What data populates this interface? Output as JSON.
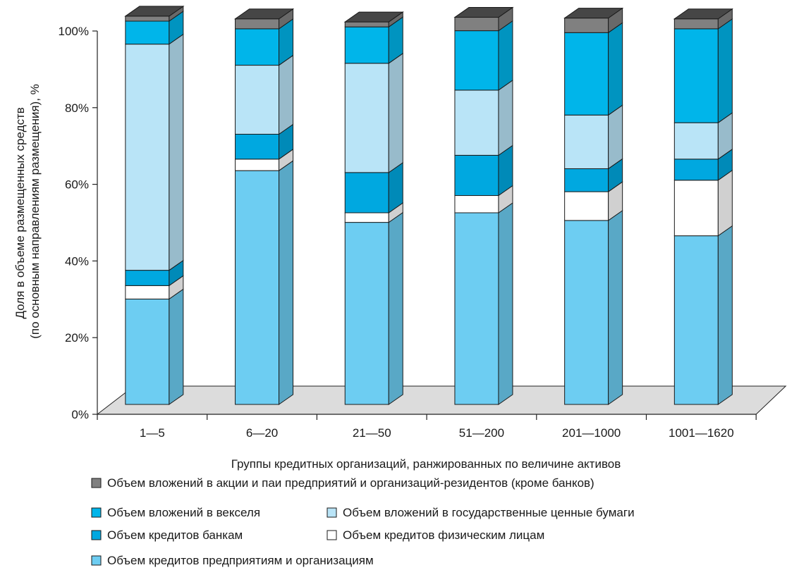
{
  "chart_data": {
    "type": "bar",
    "stacked": true,
    "three_d": true,
    "xlabel": "Группы кредитных организаций, ранжированных по величине активов",
    "ylabel": "Доля в объеме размещенных средств (по основным направлениям размещения), %",
    "ylabel_lines": [
      "Доля в объеме размещенных средств",
      "(по основным направлениям размещения), %"
    ],
    "ylim": [
      0,
      100
    ],
    "yticks": [
      "0%",
      "20%",
      "40%",
      "60%",
      "80%",
      "100%"
    ],
    "categories": [
      "1—5",
      "6—20",
      "21—50",
      "51—200",
      "201—1000",
      "1001—1620"
    ],
    "series": [
      {
        "name": "Объем кредитов предприятиям и организациям",
        "color": "#6dcdf2",
        "values": [
          27.5,
          61,
          47.5,
          50,
          48,
          44
        ]
      },
      {
        "name": "Объем кредитов физическим лицам",
        "color": "#ffffff",
        "values": [
          3.5,
          3,
          2.5,
          4.5,
          7.5,
          14.5
        ]
      },
      {
        "name": "Объем кредитов банкам",
        "color": "#00a8e0",
        "values": [
          4,
          6.5,
          10.5,
          10.5,
          6,
          5.5
        ]
      },
      {
        "name": "Объем вложений в государственные ценные бумаги",
        "color": "#b9e4f7",
        "values": [
          59,
          18,
          28.5,
          17,
          14,
          9.5
        ]
      },
      {
        "name": "Объем вложений в векселя",
        "color": "#00b5ea",
        "values": [
          6,
          9.5,
          9.5,
          15.5,
          21.5,
          24.5
        ]
      },
      {
        "name": "Объем вложений в акции и паи предприятий и организаций-резидентов (кроме банков)",
        "color": "#808080",
        "values": [
          1.3,
          2.6,
          1.3,
          3.5,
          3.8,
          2.6
        ]
      }
    ],
    "legend_order": [
      5,
      4,
      3,
      2,
      1,
      0
    ],
    "legend_placement": "bottom"
  }
}
